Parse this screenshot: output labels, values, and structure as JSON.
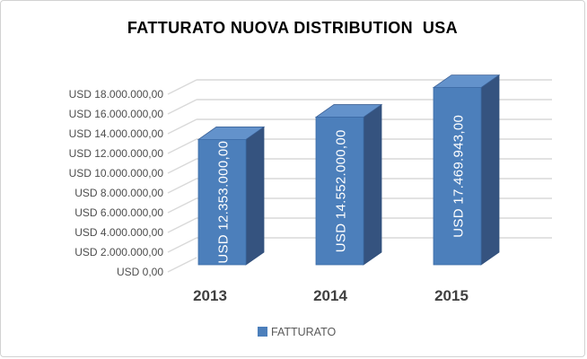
{
  "window": {
    "background_color": "#ffffff",
    "border_color": "#d2d2d2"
  },
  "chart": {
    "title": "FATTURATO NUOVA DISTRIBUTION  USA"
  },
  "chart_data": {
    "type": "bar",
    "subtype": "3d-column",
    "title": "FATTURATO NUOVA DISTRIBUTION  USA",
    "categories": [
      "2013",
      "2014",
      "2015"
    ],
    "series": [
      {
        "name": "FATTURATO",
        "values": [
          12353000,
          14552000,
          17469943
        ]
      }
    ],
    "data_labels": [
      "USD 12.353.000,00",
      "USD 14.552.000,00",
      "USD 17.469.943,00"
    ],
    "xlabel": "",
    "ylabel": "",
    "ylim": [
      0,
      18000000
    ],
    "y_major_unit": 2000000,
    "y_tick_labels": [
      "USD 0,00",
      "USD 2.000.000,00",
      "USD 4.000.000,00",
      "USD 6.000.000,00",
      "USD 8.000.000,00",
      "USD 10.000.000,00",
      "USD 12.000.000,00",
      "USD 14.000.000,00",
      "USD 16.000.000,00",
      "USD 18.000.000,00"
    ],
    "grid": true,
    "legend": {
      "position": "bottom",
      "entries": [
        "FATTURATO"
      ]
    },
    "colors": {
      "bar_front": "#4c7fbb",
      "bar_top": "#6392cb",
      "bar_side": "#35537f",
      "bar_edge": "#3a movie5f94",
      "gridline": "#d9d9d9",
      "axis_text": "#4d4d4d",
      "category_text": "#404040",
      "data_label_text": "#ffffff",
      "title_text": "#000000"
    }
  }
}
